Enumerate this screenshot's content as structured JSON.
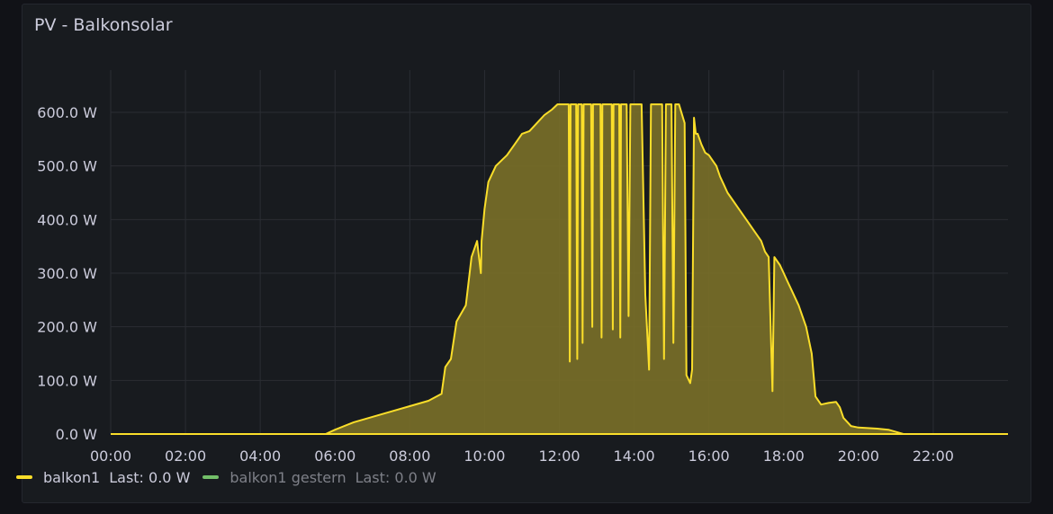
{
  "panel": {
    "title": "PV - Balkonsolar"
  },
  "legend": [
    {
      "name": "balkon1",
      "last_label": "Last:",
      "last_value": "0.0 W",
      "color": "#fade2a",
      "dimmed": false
    },
    {
      "name": "balkon1 gestern",
      "last_label": "Last:",
      "last_value": "0.0 W",
      "color": "#73bf69",
      "dimmed": true
    }
  ],
  "chart_data": {
    "type": "area",
    "title": "",
    "xlabel": "",
    "ylabel": "",
    "x_ticks": [
      "00:00",
      "02:00",
      "04:00",
      "06:00",
      "08:00",
      "10:00",
      "12:00",
      "14:00",
      "16:00",
      "18:00",
      "20:00",
      "22:00"
    ],
    "y_ticks": [
      "0.0 W",
      "100.0 W",
      "200.0 W",
      "300.0 W",
      "400.0 W",
      "500.0 W",
      "600.0 W"
    ],
    "xlim": [
      0,
      24
    ],
    "ylim": [
      0,
      600
    ],
    "grid": true,
    "legend_position": "bottom-left",
    "colors": {
      "series": "#fade2a",
      "fill": "#7a7028",
      "grid": "#2a2d33",
      "background": "#181b1f"
    },
    "series": [
      {
        "name": "balkon1",
        "x_unit": "hours",
        "points": [
          [
            0,
            0
          ],
          [
            5.75,
            0
          ],
          [
            6.0,
            8
          ],
          [
            6.5,
            22
          ],
          [
            7.0,
            32
          ],
          [
            7.5,
            42
          ],
          [
            8.0,
            52
          ],
          [
            8.5,
            62
          ],
          [
            8.85,
            75
          ],
          [
            8.95,
            125
          ],
          [
            9.1,
            140
          ],
          [
            9.25,
            210
          ],
          [
            9.5,
            240
          ],
          [
            9.65,
            330
          ],
          [
            9.8,
            360
          ],
          [
            9.9,
            300
          ],
          [
            9.92,
            360
          ],
          [
            10.0,
            420
          ],
          [
            10.1,
            470
          ],
          [
            10.3,
            500
          ],
          [
            10.6,
            520
          ],
          [
            10.8,
            540
          ],
          [
            11.0,
            560
          ],
          [
            11.2,
            565
          ],
          [
            11.4,
            580
          ],
          [
            11.6,
            595
          ],
          [
            11.8,
            605
          ],
          [
            11.95,
            615
          ],
          [
            12.0,
            615
          ],
          [
            12.25,
            615
          ],
          [
            12.28,
            135
          ],
          [
            12.3,
            615
          ],
          [
            12.45,
            615
          ],
          [
            12.48,
            140
          ],
          [
            12.5,
            615
          ],
          [
            12.6,
            615
          ],
          [
            12.62,
            170
          ],
          [
            12.65,
            615
          ],
          [
            12.85,
            615
          ],
          [
            12.88,
            200
          ],
          [
            12.9,
            615
          ],
          [
            13.1,
            615
          ],
          [
            13.13,
            180
          ],
          [
            13.15,
            615
          ],
          [
            13.4,
            615
          ],
          [
            13.43,
            195
          ],
          [
            13.45,
            615
          ],
          [
            13.6,
            615
          ],
          [
            13.63,
            180
          ],
          [
            13.65,
            615
          ],
          [
            13.8,
            615
          ],
          [
            13.85,
            220
          ],
          [
            13.9,
            615
          ],
          [
            14.2,
            615
          ],
          [
            14.3,
            260
          ],
          [
            14.4,
            120
          ],
          [
            14.45,
            615
          ],
          [
            14.75,
            615
          ],
          [
            14.8,
            140
          ],
          [
            14.85,
            615
          ],
          [
            15.0,
            615
          ],
          [
            15.05,
            170
          ],
          [
            15.1,
            615
          ],
          [
            15.2,
            615
          ],
          [
            15.35,
            580
          ],
          [
            15.4,
            110
          ],
          [
            15.5,
            95
          ],
          [
            15.55,
            120
          ],
          [
            15.6,
            590
          ],
          [
            15.65,
            560
          ],
          [
            15.7,
            560
          ],
          [
            15.8,
            540
          ],
          [
            15.9,
            525
          ],
          [
            16.0,
            520
          ],
          [
            16.1,
            510
          ],
          [
            16.2,
            500
          ],
          [
            16.3,
            480
          ],
          [
            16.4,
            465
          ],
          [
            16.5,
            450
          ],
          [
            16.6,
            440
          ],
          [
            16.8,
            420
          ],
          [
            17.0,
            400
          ],
          [
            17.2,
            380
          ],
          [
            17.4,
            360
          ],
          [
            17.5,
            340
          ],
          [
            17.6,
            330
          ],
          [
            17.7,
            80
          ],
          [
            17.75,
            330
          ],
          [
            17.9,
            315
          ],
          [
            18.0,
            300
          ],
          [
            18.1,
            285
          ],
          [
            18.2,
            270
          ],
          [
            18.4,
            240
          ],
          [
            18.6,
            200
          ],
          [
            18.75,
            150
          ],
          [
            18.85,
            70
          ],
          [
            19.0,
            55
          ],
          [
            19.2,
            58
          ],
          [
            19.4,
            60
          ],
          [
            19.5,
            50
          ],
          [
            19.6,
            30
          ],
          [
            19.8,
            15
          ],
          [
            20.0,
            12
          ],
          [
            20.5,
            10
          ],
          [
            20.8,
            8
          ],
          [
            21.0,
            4
          ],
          [
            21.2,
            0
          ],
          [
            24,
            0
          ]
        ]
      },
      {
        "name": "balkon1 gestern",
        "x_unit": "hours",
        "points": [
          [
            0,
            0
          ],
          [
            24,
            0
          ]
        ]
      }
    ]
  }
}
